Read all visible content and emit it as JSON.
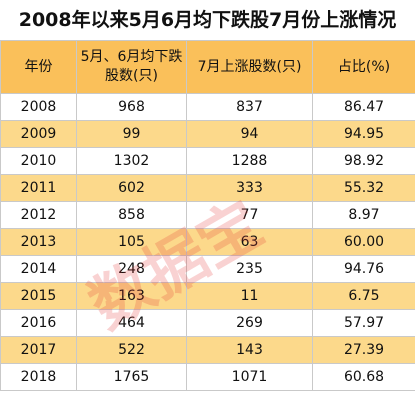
{
  "title": "2008年以来5月6月均下跌股7月份上涨情况",
  "headers": [
    "年份",
    "5月、6月均下跌股数(只)",
    "7月上涨股数(只)",
    "占比(%)"
  ],
  "rows": [
    [
      "2008",
      "968",
      "837",
      "86.47"
    ],
    [
      "2009",
      "99",
      "94",
      "94.95"
    ],
    [
      "2010",
      "1302",
      "1288",
      "98.92"
    ],
    [
      "2011",
      "602",
      "333",
      "55.32"
    ],
    [
      "2012",
      "858",
      "77",
      "8.97"
    ],
    [
      "2013",
      "105",
      "63",
      "60.00"
    ],
    [
      "2014",
      "248",
      "235",
      "94.76"
    ],
    [
      "2015",
      "163",
      "11",
      "6.75"
    ],
    [
      "2016",
      "464",
      "269",
      "57.97"
    ],
    [
      "2017",
      "522",
      "143",
      "27.39"
    ],
    [
      "2018",
      "1765",
      "1071",
      "60.68"
    ]
  ],
  "watermark": "数据宝",
  "colors": {
    "header_bg": "#fac05a",
    "stripe_bg": "#fcd98b",
    "watermark": "#e53935"
  }
}
